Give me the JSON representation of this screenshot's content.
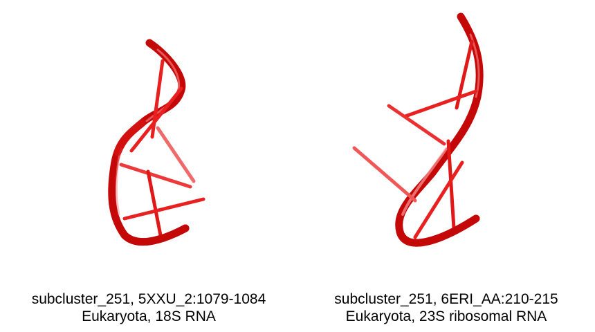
{
  "colors": {
    "backbone": "#d81010",
    "backbone_dark": "#b00000",
    "backbone_light": "#ff7a7a",
    "base_stick": "#e82020",
    "base_stick_faded": "#f05858",
    "background": "#ffffff",
    "caption_text": "#000000"
  },
  "panels": [
    {
      "caption_line1": "subcluster_251, 5XXU_2:1079-1084",
      "caption_line2": "Eukaryota, 18S RNA",
      "structure_icon": "rna-cartoon-icon"
    },
    {
      "caption_line1": "subcluster_251, 6ERI_AA:210-215",
      "caption_line2": "Eukaryota, 23S ribosomal RNA",
      "structure_icon": "rna-cartoon-icon"
    }
  ]
}
